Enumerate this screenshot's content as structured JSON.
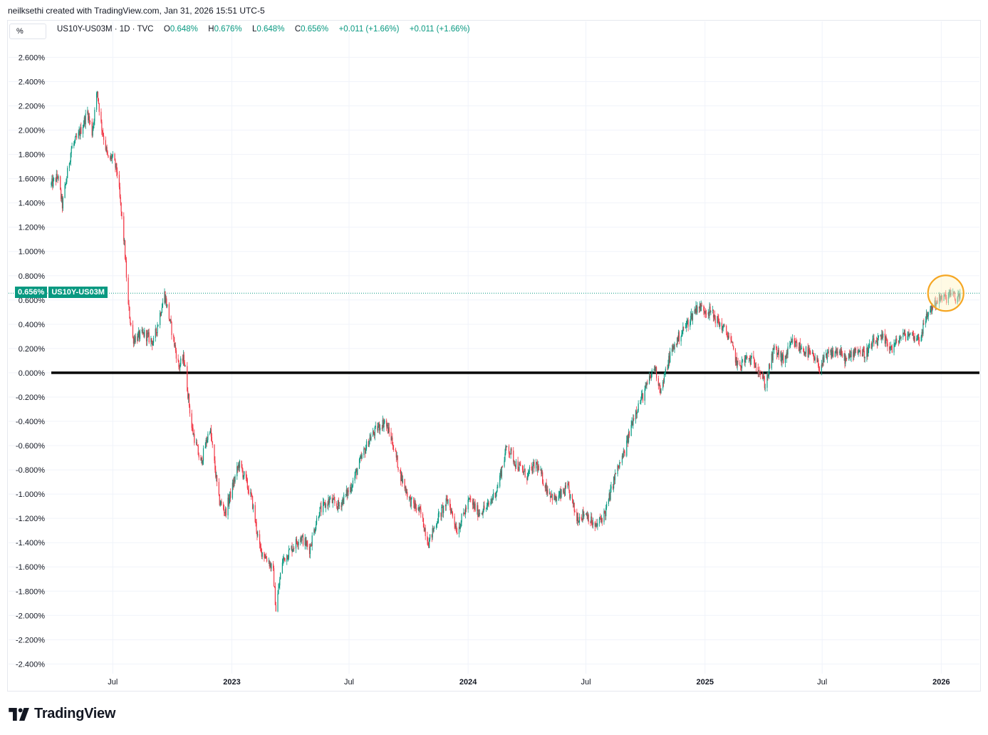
{
  "header": {
    "credit": "neilksethi created with TradingView.com, Jan 31, 2026 15:51 UTC-5"
  },
  "toolbar": {
    "unit_label": "%"
  },
  "legend": {
    "symbol": "US10Y-US03M · 1D · TVC",
    "open_label": "O",
    "open_value": "0.648%",
    "high_label": "H",
    "high_value": "0.676%",
    "low_label": "L",
    "low_value": "0.648%",
    "close_label": "C",
    "close_value": "0.656%",
    "change": "+0.011 (+1.66%)",
    "change2": "+0.011 (+1.66%)"
  },
  "price_tag": {
    "value": "0.656%",
    "symbol": "US10Y-US03M"
  },
  "footer": {
    "brand": "TradingView"
  },
  "colors": {
    "up": "#089981",
    "down": "#f23645",
    "grid": "#f0f3fa",
    "zero_line": "#000000",
    "highlight_circle": "#f5a623",
    "highlight_fill": "#fff3c4"
  },
  "chart_data": {
    "type": "candlestick",
    "title": "",
    "y_tick_labels": [
      "2.600%",
      "2.400%",
      "2.200%",
      "2.000%",
      "1.800%",
      "1.600%",
      "1.400%",
      "1.200%",
      "1.000%",
      "0.800%",
      "0.600%",
      "0.400%",
      "0.200%",
      "0.000%",
      "-0.200%",
      "-0.400%",
      "-0.600%",
      "-0.800%",
      "-1.000%",
      "-1.200%",
      "-1.400%",
      "-1.600%",
      "-1.800%",
      "-2.000%",
      "-2.200%",
      "-2.400%"
    ],
    "y_ticks": [
      2.6,
      2.4,
      2.2,
      2.0,
      1.8,
      1.6,
      1.4,
      1.2,
      1.0,
      0.8,
      0.6,
      0.4,
      0.2,
      0.0,
      -0.2,
      -0.4,
      -0.6,
      -0.8,
      -1.0,
      -1.2,
      -1.4,
      -1.6,
      -1.8,
      -2.0,
      -2.2,
      -2.4
    ],
    "ylim": [
      -2.48,
      2.72
    ],
    "x_tick_labels": [
      {
        "label": "Jul",
        "date": "2022-07-01",
        "bold": false
      },
      {
        "label": "2023",
        "date": "2023-01-01",
        "bold": true
      },
      {
        "label": "Jul",
        "date": "2023-07-01",
        "bold": false
      },
      {
        "label": "2024",
        "date": "2024-01-01",
        "bold": true
      },
      {
        "label": "Jul",
        "date": "2024-07-01",
        "bold": false
      },
      {
        "label": "2025",
        "date": "2025-01-01",
        "bold": true
      },
      {
        "label": "Jul",
        "date": "2025-07-01",
        "bold": false
      },
      {
        "label": "2026",
        "date": "2026-01-01",
        "bold": true
      }
    ],
    "x_range": [
      "2022-03-28",
      "2026-03-01"
    ],
    "reference_line": {
      "value": 0.0,
      "style": "thick solid black"
    },
    "current_price_line": {
      "value": 0.656,
      "style": "dotted green"
    },
    "highlight": {
      "date": "2026-01-08",
      "value": 0.656,
      "shape": "circle"
    },
    "series": [
      {
        "interval": "1D",
        "path_points": [
          [
            "2022-03-28",
            1.55
          ],
          [
            "2022-04-07",
            1.62
          ],
          [
            "2022-04-14",
            1.38
          ],
          [
            "2022-04-28",
            1.85
          ],
          [
            "2022-05-09",
            1.95
          ],
          [
            "2022-05-23",
            2.15
          ],
          [
            "2022-05-30",
            1.98
          ],
          [
            "2022-06-07",
            2.32
          ],
          [
            "2022-06-13",
            2.05
          ],
          [
            "2022-06-24",
            1.75
          ],
          [
            "2022-06-30",
            1.78
          ],
          [
            "2022-07-08",
            1.65
          ],
          [
            "2022-07-19",
            1.05
          ],
          [
            "2022-07-25",
            0.55
          ],
          [
            "2022-08-01",
            0.28
          ],
          [
            "2022-08-19",
            0.32
          ],
          [
            "2022-09-02",
            0.25
          ],
          [
            "2022-09-19",
            0.65
          ],
          [
            "2022-09-30",
            0.35
          ],
          [
            "2022-10-11",
            0.05
          ],
          [
            "2022-10-19",
            0.12
          ],
          [
            "2022-10-31",
            -0.45
          ],
          [
            "2022-11-14",
            -0.75
          ],
          [
            "2022-11-28",
            -0.45
          ],
          [
            "2022-12-12",
            -1.05
          ],
          [
            "2022-12-22",
            -1.15
          ],
          [
            "2023-01-12",
            -0.75
          ],
          [
            "2023-01-20",
            -0.85
          ],
          [
            "2023-02-01",
            -1.05
          ],
          [
            "2023-02-13",
            -1.45
          ],
          [
            "2023-02-27",
            -1.55
          ],
          [
            "2023-03-06",
            -1.65
          ],
          [
            "2023-03-10",
            -1.95
          ],
          [
            "2023-03-20",
            -1.55
          ],
          [
            "2023-04-03",
            -1.45
          ],
          [
            "2023-04-17",
            -1.35
          ],
          [
            "2023-05-01",
            -1.45
          ],
          [
            "2023-05-15",
            -1.15
          ],
          [
            "2023-06-01",
            -1.05
          ],
          [
            "2023-06-15",
            -1.1
          ],
          [
            "2023-07-03",
            -0.95
          ],
          [
            "2023-07-17",
            -0.75
          ],
          [
            "2023-08-01",
            -0.55
          ],
          [
            "2023-08-15",
            -0.45
          ],
          [
            "2023-08-25",
            -0.4
          ],
          [
            "2023-09-05",
            -0.55
          ],
          [
            "2023-09-19",
            -0.85
          ],
          [
            "2023-10-03",
            -1.05
          ],
          [
            "2023-10-19",
            -1.15
          ],
          [
            "2023-11-01",
            -1.4
          ],
          [
            "2023-11-15",
            -1.2
          ],
          [
            "2023-12-01",
            -1.05
          ],
          [
            "2023-12-15",
            -1.3
          ],
          [
            "2024-01-03",
            -1.05
          ],
          [
            "2024-01-17",
            -1.15
          ],
          [
            "2024-02-01",
            -1.1
          ],
          [
            "2024-02-15",
            -0.95
          ],
          [
            "2024-03-01",
            -0.6
          ],
          [
            "2024-03-15",
            -0.75
          ],
          [
            "2024-04-01",
            -0.85
          ],
          [
            "2024-04-15",
            -0.75
          ],
          [
            "2024-05-01",
            -0.95
          ],
          [
            "2024-05-15",
            -1.05
          ],
          [
            "2024-06-03",
            -0.95
          ],
          [
            "2024-06-17",
            -1.2
          ],
          [
            "2024-07-01",
            -1.15
          ],
          [
            "2024-07-15",
            -1.28
          ],
          [
            "2024-07-31",
            -1.15
          ],
          [
            "2024-08-15",
            -0.85
          ],
          [
            "2024-08-30",
            -0.65
          ],
          [
            "2024-09-13",
            -0.35
          ],
          [
            "2024-09-30",
            -0.15
          ],
          [
            "2024-10-15",
            0.05
          ],
          [
            "2024-10-25",
            -0.15
          ],
          [
            "2024-11-08",
            0.15
          ],
          [
            "2024-11-22",
            0.3
          ],
          [
            "2024-12-06",
            0.42
          ],
          [
            "2024-12-20",
            0.55
          ],
          [
            "2025-01-10",
            0.5
          ],
          [
            "2025-01-24",
            0.4
          ],
          [
            "2025-02-07",
            0.3
          ],
          [
            "2025-02-21",
            0.05
          ],
          [
            "2025-03-07",
            0.12
          ],
          [
            "2025-03-21",
            0.08
          ],
          [
            "2025-04-04",
            -0.1
          ],
          [
            "2025-04-18",
            0.2
          ],
          [
            "2025-05-02",
            0.1
          ],
          [
            "2025-05-16",
            0.25
          ],
          [
            "2025-05-30",
            0.2
          ],
          [
            "2025-06-13",
            0.15
          ],
          [
            "2025-06-27",
            0.05
          ],
          [
            "2025-07-11",
            0.15
          ],
          [
            "2025-07-25",
            0.18
          ],
          [
            "2025-08-08",
            0.1
          ],
          [
            "2025-08-22",
            0.2
          ],
          [
            "2025-09-05",
            0.15
          ],
          [
            "2025-09-19",
            0.25
          ],
          [
            "2025-10-03",
            0.28
          ],
          [
            "2025-10-17",
            0.2
          ],
          [
            "2025-10-31",
            0.3
          ],
          [
            "2025-11-14",
            0.32
          ],
          [
            "2025-11-28",
            0.28
          ],
          [
            "2025-12-12",
            0.5
          ],
          [
            "2025-12-26",
            0.6
          ],
          [
            "2026-01-09",
            0.62
          ],
          [
            "2026-01-16",
            0.66
          ],
          [
            "2026-01-23",
            0.6
          ],
          [
            "2026-01-30",
            0.656
          ]
        ]
      }
    ]
  }
}
